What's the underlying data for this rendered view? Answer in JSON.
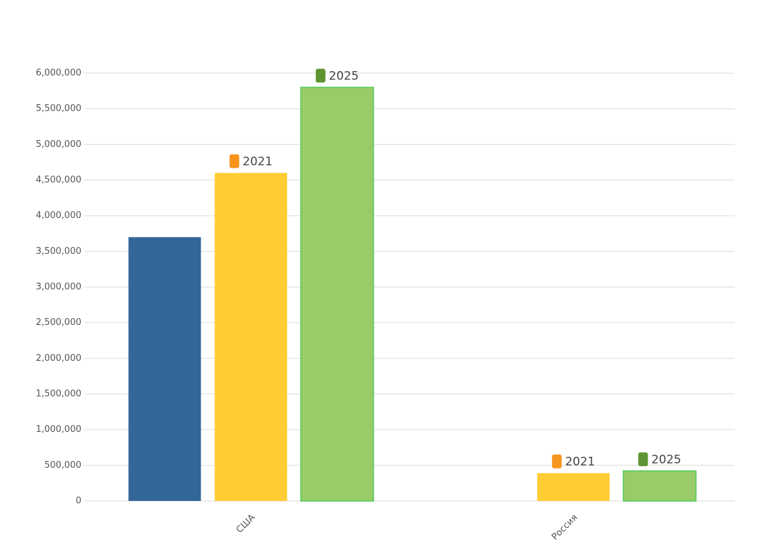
{
  "chart_data": {
    "type": "bar",
    "categories": [
      "США",
      "Россия"
    ],
    "series": [
      {
        "color": "#336699",
        "values": [
          3700000,
          null
        ]
      },
      {
        "name": "2021",
        "color": "#ffcc33",
        "marker_color": "#f7941d",
        "values": [
          4600000,
          390000
        ]
      },
      {
        "name": "2025",
        "color": "#99cc66",
        "marker_color": "#5e9431",
        "values": [
          5800000,
          420000
        ]
      }
    ],
    "ylim": [
      0,
      6000000
    ],
    "yticks": [
      0,
      {
        "value": 500000,
        "label": "500,000"
      },
      {
        "value": 1000000,
        "label": "1,000,000"
      },
      {
        "value": 1500000,
        "label": "1,500,000"
      },
      {
        "value": 2000000,
        "label": "2,000,000"
      },
      {
        "value": 2500000,
        "label": "2,500,000"
      },
      {
        "value": 3000000,
        "label": "3,000,000"
      },
      {
        "value": 3500000,
        "label": "3,500,000"
      },
      {
        "value": 4000000,
        "label": "4,000,000"
      },
      {
        "value": 4500000,
        "label": "4,500,000"
      },
      {
        "value": 5000000,
        "label": "5,000,000"
      },
      {
        "value": 5500000,
        "label": "5,500,000"
      },
      {
        "value": 6000000,
        "label": "6,000,000"
      }
    ],
    "grid": true
  }
}
